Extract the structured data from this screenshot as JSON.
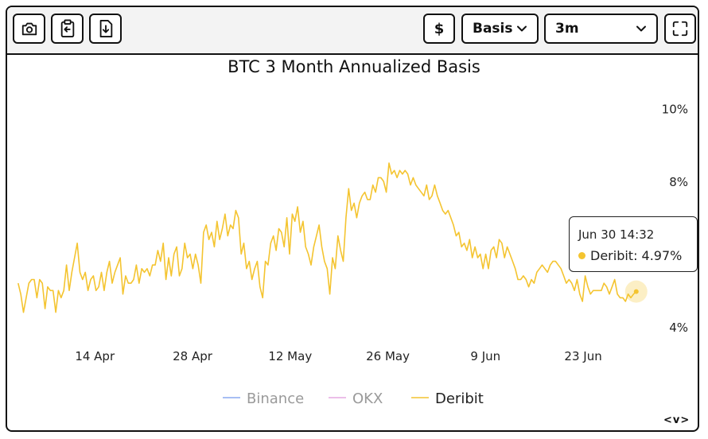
{
  "toolbar": {
    "currency_label": "$",
    "metric_select": {
      "value": "Basis"
    },
    "tenor_select": {
      "value": "3m"
    }
  },
  "colors": {
    "binance": "#8aa8f0",
    "okx": "#e5a8e2",
    "deribit": "#f4c430"
  },
  "chart_data": {
    "type": "line",
    "title": "BTC 3 Month Annualized Basis",
    "xlabel": "",
    "ylabel": "",
    "x_ticks": [
      "14 Apr",
      "28 Apr",
      "12 May",
      "26 May",
      "9 Jun",
      "23 Jun"
    ],
    "y_ticks": [
      "4%",
      "8%",
      "10%"
    ],
    "ylim": [
      4,
      10
    ],
    "xlim": [
      "2024-04-02",
      "2024-07-02"
    ],
    "y_axis_position": "right",
    "grid": false,
    "legend": {
      "position": "bottom",
      "entries": [
        {
          "name": "Binance",
          "active": false
        },
        {
          "name": "OKX",
          "active": false
        },
        {
          "name": "Deribit",
          "active": true
        }
      ]
    },
    "series": [
      {
        "name": "Binance",
        "values": []
      },
      {
        "name": "OKX",
        "values": []
      },
      {
        "name": "Deribit",
        "start": "2024-04-03",
        "end": "2024-06-30T14:32",
        "values": [
          5.2,
          4.9,
          4.4,
          4.8,
          5.2,
          5.3,
          5.3,
          4.8,
          5.3,
          5.2,
          4.5,
          5.1,
          5.0,
          5.0,
          4.4,
          5.0,
          4.8,
          5.0,
          5.7,
          5.0,
          5.5,
          5.9,
          6.3,
          5.5,
          5.3,
          5.5,
          5.0,
          5.3,
          5.4,
          5.0,
          5.1,
          5.5,
          5.0,
          5.5,
          5.8,
          5.2,
          5.5,
          5.7,
          5.9,
          4.9,
          5.4,
          5.2,
          5.2,
          5.3,
          5.7,
          5.2,
          5.6,
          5.5,
          5.6,
          5.4,
          5.7,
          5.7,
          6.1,
          5.8,
          6.3,
          5.3,
          5.9,
          5.4,
          6.0,
          6.2,
          5.4,
          5.6,
          6.3,
          5.9,
          6.0,
          5.6,
          6.0,
          5.7,
          5.2,
          6.6,
          6.8,
          6.4,
          6.6,
          6.2,
          6.9,
          6.4,
          6.7,
          7.1,
          6.5,
          6.8,
          6.7,
          7.2,
          7.0,
          6.0,
          6.3,
          5.6,
          5.8,
          5.3,
          5.6,
          5.8,
          5.1,
          4.8,
          5.8,
          5.7,
          6.3,
          6.5,
          6.1,
          6.7,
          6.6,
          6.2,
          7.0,
          6.0,
          7.1,
          6.9,
          7.3,
          6.6,
          6.9,
          6.2,
          6.0,
          5.7,
          6.2,
          6.5,
          6.8,
          6.2,
          5.8,
          5.6,
          4.9,
          5.9,
          5.6,
          6.5,
          6.1,
          5.8,
          7.0,
          7.8,
          7.2,
          7.4,
          7.0,
          7.4,
          7.6,
          7.7,
          7.5,
          7.5,
          7.9,
          7.7,
          8.1,
          8.1,
          8.0,
          7.7,
          8.5,
          8.2,
          8.3,
          8.1,
          8.3,
          8.2,
          8.3,
          8.2,
          7.9,
          8.1,
          7.9,
          7.8,
          7.7,
          7.6,
          7.9,
          7.5,
          7.6,
          7.9,
          7.6,
          7.4,
          7.2,
          7.1,
          7.2,
          7.0,
          6.8,
          6.5,
          6.6,
          6.2,
          6.3,
          6.1,
          6.4,
          5.9,
          6.2,
          5.9,
          6.0,
          5.6,
          6.0,
          5.6,
          6.1,
          6.2,
          5.9,
          6.4,
          6.3,
          5.9,
          6.2,
          6.0,
          5.8,
          5.6,
          5.3,
          5.3,
          5.4,
          5.3,
          5.1,
          5.3,
          5.2,
          5.5,
          5.6,
          5.7,
          5.6,
          5.5,
          5.7,
          5.8,
          5.8,
          5.7,
          5.6,
          5.4,
          5.2,
          5.3,
          5.2,
          5.0,
          5.3,
          4.9,
          4.7,
          5.4,
          5.1,
          4.9,
          5.0,
          5.0,
          5.0,
          5.0,
          5.2,
          5.1,
          4.9,
          5.1,
          5.3,
          4.9,
          4.8,
          4.8,
          4.7,
          4.9,
          4.8,
          4.9,
          4.97
        ]
      }
    ],
    "hover": {
      "series": "Deribit",
      "timestamp_label": "Jun 30 14:32",
      "value_label": "Deribit: 4.97%",
      "value": 4.97
    }
  },
  "footer": {
    "nav_hint": "<v>"
  }
}
